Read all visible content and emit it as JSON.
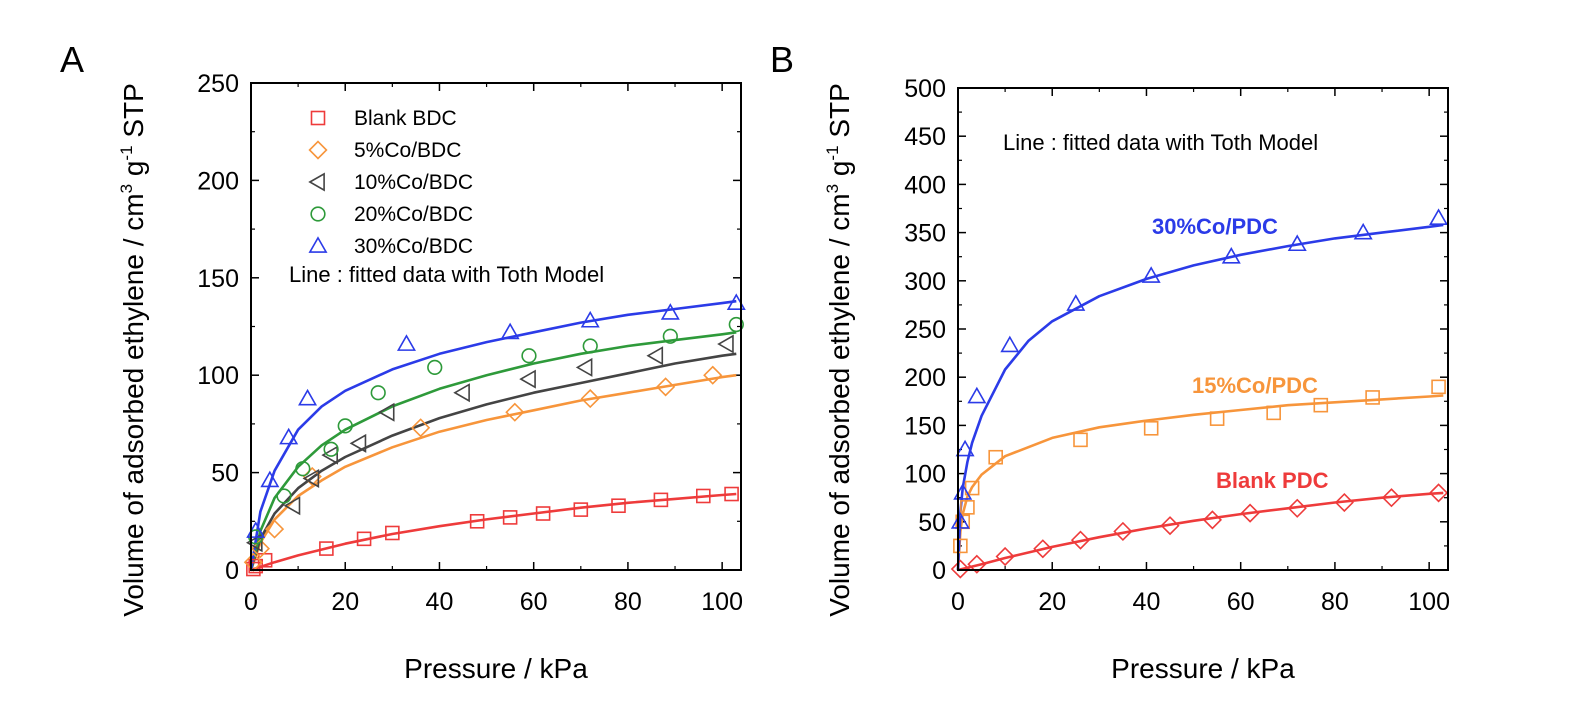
{
  "chart_data": [
    {
      "panel_label": "A",
      "type": "scatter",
      "xlabel": "Pressure / kPa",
      "ylabel_main": "Volume of adsorbed ethylene / cm",
      "ylabel_sup1": "3",
      "ylabel_mid": " g",
      "ylabel_sup2": "-1",
      "ylabel_end": " STP",
      "xlim": [
        0,
        104
      ],
      "ylim": [
        0,
        250
      ],
      "xticks": [
        0,
        20,
        40,
        60,
        80,
        100
      ],
      "yticks": [
        0,
        50,
        100,
        150,
        200,
        250
      ],
      "legend_placement": "top-left",
      "annotation": "Line : fitted data with Toth Model",
      "series": [
        {
          "name": "Blank BDC",
          "marker": "square",
          "color": "#ee3b3b",
          "points": [
            [
              0.5,
              0.5
            ],
            [
              1,
              2
            ],
            [
              3,
              5
            ],
            [
              16,
              11
            ],
            [
              24,
              16
            ],
            [
              30,
              19
            ],
            [
              48,
              25
            ],
            [
              55,
              27
            ],
            [
              62,
              29
            ],
            [
              70,
              31
            ],
            [
              78,
              33
            ],
            [
              87,
              36
            ],
            [
              96,
              38
            ],
            [
              102,
              39
            ]
          ],
          "fit": [
            [
              0,
              0
            ],
            [
              5,
              4
            ],
            [
              10,
              7.5
            ],
            [
              20,
              13.5
            ],
            [
              30,
              18.5
            ],
            [
              40,
              22.5
            ],
            [
              50,
              26
            ],
            [
              60,
              29
            ],
            [
              70,
              32
            ],
            [
              80,
              34.5
            ],
            [
              90,
              36.5
            ],
            [
              100,
              38.5
            ],
            [
              103,
              39
            ]
          ]
        },
        {
          "name": "5%Co/BDC",
          "marker": "diamond",
          "color": "#f7953b",
          "points": [
            [
              0.5,
              4
            ],
            [
              2,
              11
            ],
            [
              5,
              21
            ],
            [
              13,
              48
            ],
            [
              36,
              73
            ],
            [
              56,
              81
            ],
            [
              72,
              88
            ],
            [
              88,
              94
            ],
            [
              98,
              100
            ]
          ],
          "fit": [
            [
              0,
              0
            ],
            [
              2,
              14
            ],
            [
              5,
              26
            ],
            [
              10,
              38
            ],
            [
              15,
              46
            ],
            [
              20,
              53
            ],
            [
              30,
              63
            ],
            [
              40,
              71
            ],
            [
              50,
              77
            ],
            [
              60,
              82
            ],
            [
              70,
              87
            ],
            [
              80,
              91
            ],
            [
              90,
              95
            ],
            [
              100,
              99
            ],
            [
              103,
              100
            ]
          ]
        },
        {
          "name": "10%Co/BDC",
          "marker": "triangle-left",
          "color": "#444444",
          "points": [
            [
              1,
              14
            ],
            [
              9,
              33
            ],
            [
              13,
              47
            ],
            [
              17,
              59
            ],
            [
              23,
              65
            ],
            [
              29,
              81
            ],
            [
              45,
              91
            ],
            [
              59,
              98
            ],
            [
              71,
              104
            ],
            [
              86,
              110
            ],
            [
              101,
              116
            ]
          ],
          "fit": [
            [
              0,
              0
            ],
            [
              2,
              16
            ],
            [
              5,
              29
            ],
            [
              10,
              42
            ],
            [
              15,
              51
            ],
            [
              20,
              58
            ],
            [
              30,
              69
            ],
            [
              40,
              78
            ],
            [
              50,
              85
            ],
            [
              60,
              91
            ],
            [
              70,
              96
            ],
            [
              80,
              101
            ],
            [
              90,
              106
            ],
            [
              100,
              110
            ],
            [
              103,
              111
            ]
          ]
        },
        {
          "name": "20%Co/BDC",
          "marker": "circle",
          "color": "#2e9a3a",
          "points": [
            [
              1,
              17
            ],
            [
              7,
              38
            ],
            [
              11,
              52
            ],
            [
              17,
              62
            ],
            [
              20,
              74
            ],
            [
              27,
              91
            ],
            [
              39,
              104
            ],
            [
              59,
              110
            ],
            [
              72,
              115
            ],
            [
              89,
              120
            ],
            [
              103,
              126
            ]
          ],
          "fit": [
            [
              0,
              0
            ],
            [
              2,
              20
            ],
            [
              5,
              37
            ],
            [
              10,
              53
            ],
            [
              15,
              64
            ],
            [
              20,
              72
            ],
            [
              30,
              84
            ],
            [
              40,
              93
            ],
            [
              50,
              100
            ],
            [
              60,
              106
            ],
            [
              70,
              111
            ],
            [
              80,
              115
            ],
            [
              90,
              118
            ],
            [
              100,
              121
            ],
            [
              103,
              122
            ]
          ]
        },
        {
          "name": "30%Co/BDC",
          "marker": "triangle-up",
          "color": "#2b3be8",
          "points": [
            [
              1,
              20
            ],
            [
              4,
              46
            ],
            [
              8,
              68
            ],
            [
              12,
              88
            ],
            [
              33,
              116
            ],
            [
              55,
              122
            ],
            [
              72,
              128
            ],
            [
              89,
              132
            ],
            [
              103,
              137
            ]
          ],
          "fit": [
            [
              0,
              0
            ],
            [
              2,
              30
            ],
            [
              5,
              51
            ],
            [
              10,
              72
            ],
            [
              15,
              84
            ],
            [
              20,
              92
            ],
            [
              30,
              103
            ],
            [
              40,
              111
            ],
            [
              50,
              117
            ],
            [
              60,
              122
            ],
            [
              70,
              127
            ],
            [
              80,
              131
            ],
            [
              90,
              134
            ],
            [
              100,
              137
            ],
            [
              103,
              138
            ]
          ]
        }
      ]
    },
    {
      "panel_label": "B",
      "type": "scatter",
      "xlabel": "Pressure / kPa",
      "ylabel_main": "Volume of adsorbed ethylene / cm",
      "ylabel_sup1": "3",
      "ylabel_mid": " g",
      "ylabel_sup2": "-1",
      "ylabel_end": " STP",
      "xlim": [
        0,
        104
      ],
      "ylim": [
        0,
        500
      ],
      "xticks": [
        0,
        20,
        40,
        60,
        80,
        100
      ],
      "yticks": [
        0,
        50,
        100,
        150,
        200,
        250,
        300,
        350,
        400,
        450,
        500
      ],
      "annotation": "Line : fitted data with Toth Model",
      "series": [
        {
          "name": "Blank PDC",
          "marker": "diamond",
          "color": "#ee3b3b",
          "points": [
            [
              0.5,
              1
            ],
            [
              4,
              6
            ],
            [
              10,
              14
            ],
            [
              18,
              22
            ],
            [
              26,
              31
            ],
            [
              35,
              40
            ],
            [
              45,
              46
            ],
            [
              54,
              52
            ],
            [
              62,
              59
            ],
            [
              72,
              64
            ],
            [
              82,
              70
            ],
            [
              92,
              75
            ],
            [
              102,
              80
            ]
          ],
          "fit": [
            [
              0,
              0
            ],
            [
              5,
              6
            ],
            [
              10,
              12.5
            ],
            [
              20,
              24
            ],
            [
              30,
              34
            ],
            [
              40,
              43
            ],
            [
              50,
              51
            ],
            [
              60,
              58
            ],
            [
              70,
              64
            ],
            [
              80,
              70
            ],
            [
              90,
              75
            ],
            [
              100,
              79
            ],
            [
              103,
              80
            ]
          ]
        },
        {
          "name": "15%Co/PDC",
          "marker": "square",
          "color": "#f7953b",
          "points": [
            [
              0.5,
              25
            ],
            [
              1,
              50
            ],
            [
              2,
              65
            ],
            [
              3,
              85
            ],
            [
              8,
              117
            ],
            [
              26,
              135
            ],
            [
              41,
              147
            ],
            [
              55,
              157
            ],
            [
              67,
              163
            ],
            [
              77,
              171
            ],
            [
              88,
              179
            ],
            [
              102,
              190
            ]
          ],
          "fit": [
            [
              0,
              0
            ],
            [
              0.5,
              40
            ],
            [
              1,
              58
            ],
            [
              2,
              76
            ],
            [
              3,
              86
            ],
            [
              5,
              99
            ],
            [
              10,
              118
            ],
            [
              20,
              137
            ],
            [
              30,
              148
            ],
            [
              40,
              155
            ],
            [
              50,
              161
            ],
            [
              60,
              166
            ],
            [
              70,
              171
            ],
            [
              80,
              174
            ],
            [
              90,
              177
            ],
            [
              100,
              180
            ],
            [
              103,
              181
            ]
          ]
        },
        {
          "name": "30%Co/PDC",
          "marker": "triangle-up",
          "color": "#2b3be8",
          "points": [
            [
              0.5,
              50
            ],
            [
              1,
              80
            ],
            [
              1.5,
              125
            ],
            [
              4,
              180
            ],
            [
              11,
              233
            ],
            [
              25,
              276
            ],
            [
              41,
              305
            ],
            [
              58,
              325
            ],
            [
              72,
              338
            ],
            [
              86,
              350
            ],
            [
              102,
              365
            ]
          ],
          "fit": [
            [
              0,
              0
            ],
            [
              0.5,
              60
            ],
            [
              1,
              85
            ],
            [
              2,
              112
            ],
            [
              3,
              132
            ],
            [
              5,
              160
            ],
            [
              10,
              208
            ],
            [
              15,
              238
            ],
            [
              20,
              258
            ],
            [
              30,
              284
            ],
            [
              40,
              302
            ],
            [
              50,
              316
            ],
            [
              60,
              327
            ],
            [
              70,
              336
            ],
            [
              80,
              344
            ],
            [
              90,
              350
            ],
            [
              100,
              356
            ],
            [
              103,
              358
            ]
          ]
        }
      ]
    }
  ]
}
